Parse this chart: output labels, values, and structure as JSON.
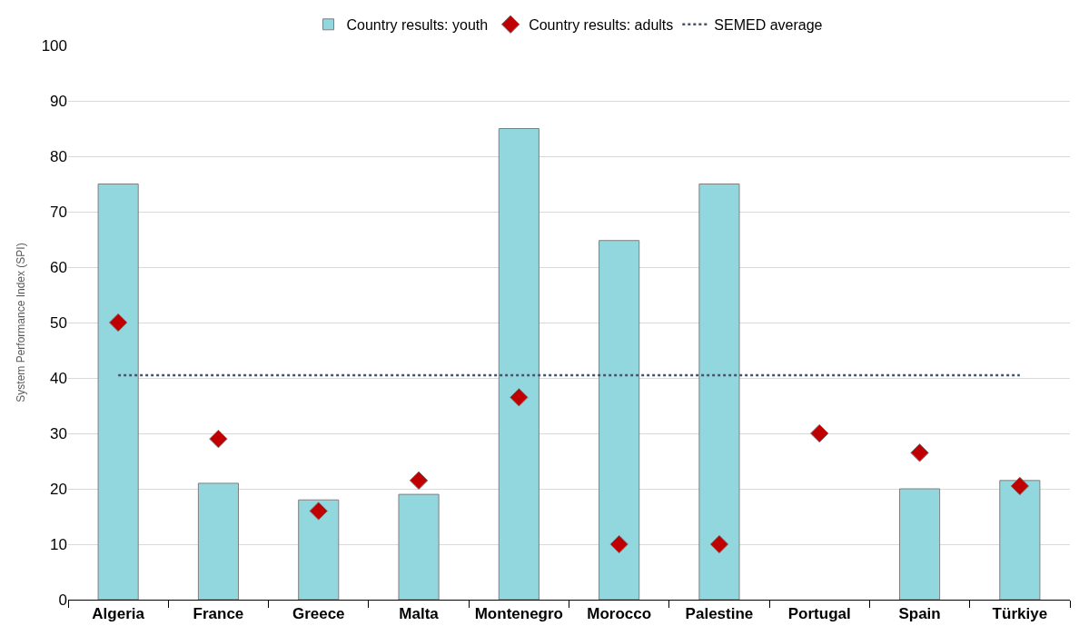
{
  "chart_data": {
    "type": "bar",
    "ylabel": "System Performance Index (SPI)",
    "categories": [
      "Algeria",
      "France",
      "Greece",
      "Malta",
      "Montenegro",
      "Morocco",
      "Palestine",
      "Portugal",
      "Spain",
      "Türkiye"
    ],
    "series": [
      {
        "name": "Country results: youth",
        "color": "#92d7de",
        "values": [
          75,
          21,
          18,
          19,
          85,
          64.8,
          75,
          null,
          20,
          21.5
        ]
      },
      {
        "name": "Country results: adults",
        "type": "scatter",
        "color": "#c00000",
        "marker": "diamond",
        "values": [
          50,
          29,
          16,
          21.5,
          36.5,
          10,
          10,
          30,
          26.5,
          20.5
        ]
      },
      {
        "name": "SEMED average",
        "type": "line",
        "color": "#44546a",
        "line_style": "dotted",
        "marker": "none",
        "values": [
          40.5,
          40.5,
          40.5,
          40.5,
          40.5,
          40.5,
          40.5,
          40.5,
          40.5,
          40.5
        ]
      }
    ],
    "ylim": [
      0,
      100
    ],
    "yticks": [
      0,
      10,
      20,
      30,
      40,
      50,
      60,
      70,
      80,
      90,
      100
    ],
    "grid": "y",
    "legend": "top"
  }
}
